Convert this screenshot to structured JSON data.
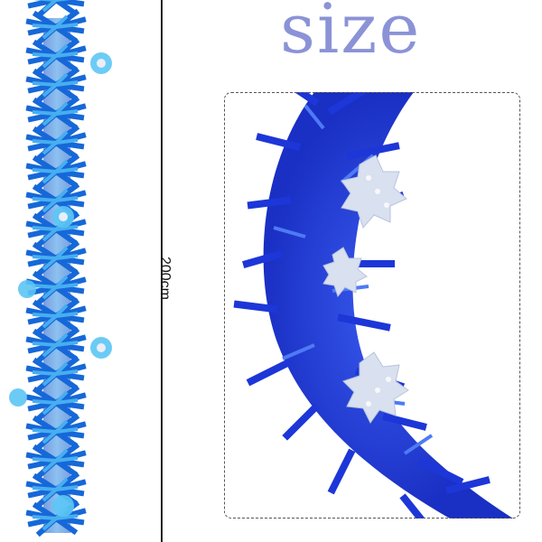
{
  "heading": "size",
  "measurement": "200cm",
  "colors": {
    "blue_deep": "#1f3bd6",
    "blue_mid": "#1c6fd8",
    "blue_light": "#59c1f2",
    "silver": "#dfe6f4",
    "title": "#8b93d6"
  }
}
